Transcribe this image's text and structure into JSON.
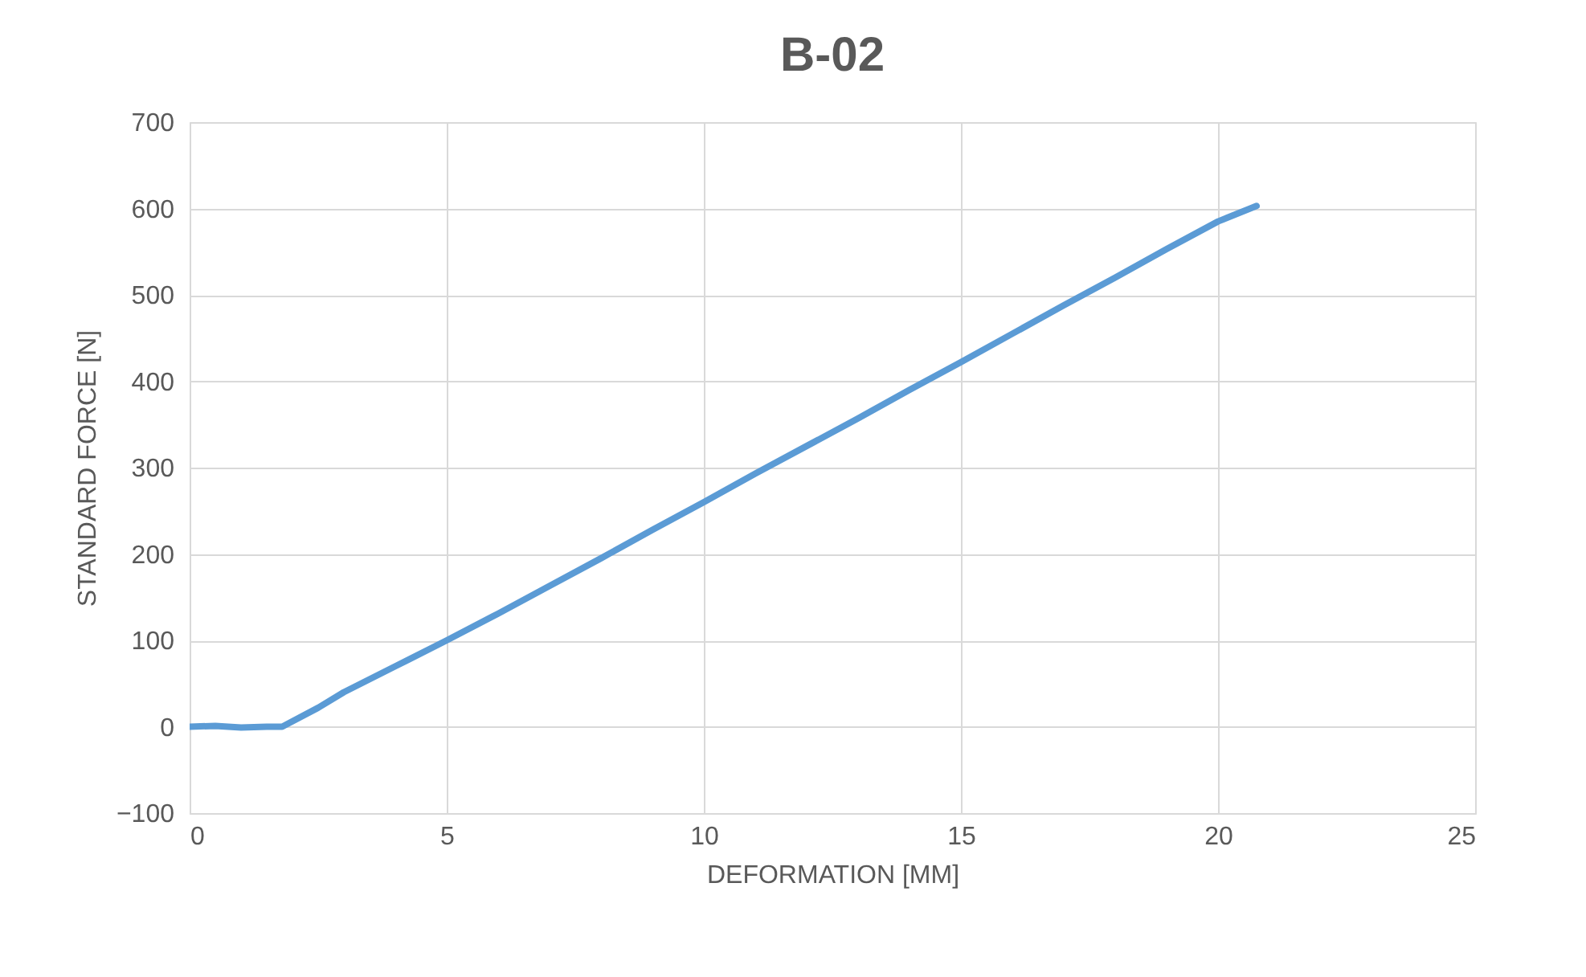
{
  "chart_data": {
    "type": "line",
    "title": "B-02",
    "xlabel": "DEFORMATION [MM]",
    "ylabel": "STANDARD FORCE [N]",
    "x": [
      0,
      0.5,
      1,
      1.5,
      1.8,
      2.5,
      3,
      4,
      5,
      6,
      7,
      8,
      9,
      10,
      11,
      12,
      13,
      14,
      15,
      16,
      17,
      18,
      19,
      20,
      20.75
    ],
    "series": [
      {
        "color": "#5b9bd5",
        "values": [
          0,
          1,
          -1,
          0,
          0,
          22,
          40,
          70,
          100,
          131,
          163,
          195,
          228,
          260,
          293,
          325,
          357,
          390,
          422,
          455,
          488,
          520,
          553,
          585,
          603
        ]
      }
    ],
    "xlim": [
      0,
      25
    ],
    "xticks": [
      0,
      5,
      10,
      15,
      20,
      25
    ],
    "ylim": [
      -100,
      700
    ],
    "yticks": [
      -100,
      0,
      100,
      200,
      300,
      400,
      500,
      600,
      700
    ],
    "grid": true,
    "marker": "none",
    "line_style": "solid"
  }
}
